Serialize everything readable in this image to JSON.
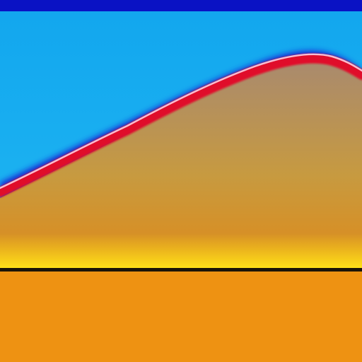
{
  "scene": {
    "colors": {
      "top_band": "#0a12c4",
      "sky_top": "#12a6ee",
      "sky_bottom": "#1fb6f2",
      "edge_glow": "#1430d6",
      "ridge_red": "#e0102a",
      "ridge_highlight": "#ffd0e0",
      "fill_upper": "#a98a6e",
      "fill_mid": "#c79a40",
      "fill_lower": "#df8a18",
      "horizon_yellow": "#ffe21a",
      "horizon_line": "#1a1408",
      "ground": "#ee9212"
    }
  }
}
